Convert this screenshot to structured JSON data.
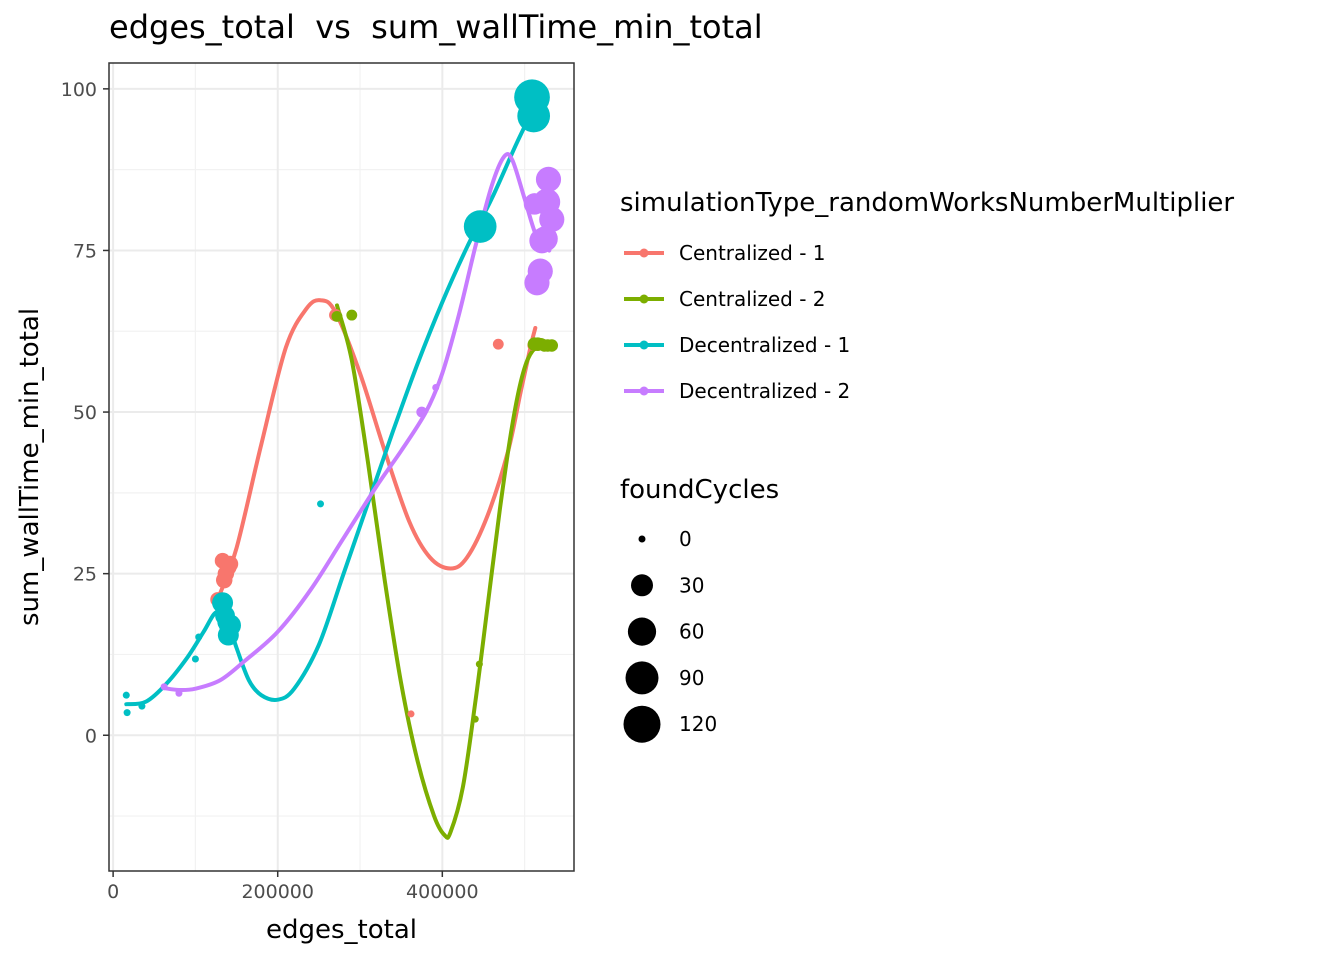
{
  "chart_data": {
    "type": "scatter",
    "title": "edges_total  vs  sum_wallTime_min_total",
    "xlabel": "edges_total",
    "ylabel": "sum_wallTime_min_total",
    "xlim": [
      -5000,
      560000
    ],
    "ylim": [
      -21,
      104
    ],
    "x_ticks": [
      0,
      200000,
      400000
    ],
    "x_tick_labels": [
      "0",
      "200000",
      "400000"
    ],
    "y_ticks": [
      0,
      25,
      50,
      75,
      100
    ],
    "y_tick_labels": [
      "0",
      "25",
      "50",
      "75",
      "100"
    ],
    "grid": true,
    "legend_position": "right",
    "color_legend_title": "simulationType_randomWorksNumberMultiplier",
    "size_legend_title": "foundCycles",
    "size_legend": [
      {
        "label": "0",
        "value": 0
      },
      {
        "label": "30",
        "value": 30
      },
      {
        "label": "60",
        "value": 60
      },
      {
        "label": "90",
        "value": 90
      },
      {
        "label": "120",
        "value": 120
      }
    ],
    "series": [
      {
        "name": "Centralized - 1",
        "color": "#F8766D",
        "points": [
          {
            "x": 127000,
            "y": 21,
            "cycles": 8
          },
          {
            "x": 133000,
            "y": 27,
            "cycles": 10
          },
          {
            "x": 135000,
            "y": 24,
            "cycles": 12
          },
          {
            "x": 137000,
            "y": 25,
            "cycles": 12
          },
          {
            "x": 140000,
            "y": 26,
            "cycles": 12
          },
          {
            "x": 142000,
            "y": 26.5,
            "cycles": 12
          },
          {
            "x": 270000,
            "y": 65,
            "cycles": 4
          },
          {
            "x": 362000,
            "y": 3.3,
            "cycles": 0
          },
          {
            "x": 468000,
            "y": 60.5,
            "cycles": 2
          },
          {
            "x": 510000,
            "y": 60.3,
            "cycles": 2
          }
        ],
        "smooth": [
          [
            127000,
            21
          ],
          [
            150000,
            29
          ],
          [
            180000,
            45
          ],
          [
            210000,
            60
          ],
          [
            235000,
            66
          ],
          [
            252000,
            67.3
          ],
          [
            270000,
            65.5
          ],
          [
            300000,
            56
          ],
          [
            330000,
            44
          ],
          [
            360000,
            33
          ],
          [
            385000,
            27.5
          ],
          [
            410000,
            25.8
          ],
          [
            430000,
            27.5
          ],
          [
            455000,
            34
          ],
          [
            480000,
            44
          ],
          [
            495000,
            53
          ],
          [
            507000,
            60
          ],
          [
            513000,
            63
          ]
        ]
      },
      {
        "name": "Centralized - 2",
        "color": "#7CAE00",
        "points": [
          {
            "x": 272000,
            "y": 64.8,
            "cycles": 2
          },
          {
            "x": 290000,
            "y": 65,
            "cycles": 2
          },
          {
            "x": 440000,
            "y": 2.5,
            "cycles": 0
          },
          {
            "x": 445000,
            "y": 11,
            "cycles": 0
          },
          {
            "x": 512000,
            "y": 60.5,
            "cycles": 6
          },
          {
            "x": 516000,
            "y": 60.5,
            "cycles": 6
          },
          {
            "x": 520000,
            "y": 60.5,
            "cycles": 4
          },
          {
            "x": 524000,
            "y": 60.3,
            "cycles": 4
          },
          {
            "x": 528000,
            "y": 60.3,
            "cycles": 4
          },
          {
            "x": 533000,
            "y": 60.3,
            "cycles": 4
          }
        ],
        "smooth": [
          [
            272000,
            66.5
          ],
          [
            290000,
            58
          ],
          [
            310000,
            42
          ],
          [
            330000,
            24
          ],
          [
            350000,
            8
          ],
          [
            370000,
            -4
          ],
          [
            390000,
            -12.5
          ],
          [
            403000,
            -15.5
          ],
          [
            410000,
            -15
          ],
          [
            425000,
            -8
          ],
          [
            440000,
            5
          ],
          [
            455000,
            20
          ],
          [
            470000,
            35
          ],
          [
            485000,
            48
          ],
          [
            498000,
            56
          ],
          [
            510000,
            59.5
          ],
          [
            525000,
            60.5
          ],
          [
            533000,
            60.3
          ]
        ]
      },
      {
        "name": "Decentralized - 1",
        "color": "#00BFC4",
        "points": [
          {
            "x": 16000,
            "y": 6.2,
            "cycles": 0
          },
          {
            "x": 17000,
            "y": 3.5,
            "cycles": 0
          },
          {
            "x": 35000,
            "y": 4.5,
            "cycles": 0
          },
          {
            "x": 100000,
            "y": 11.8,
            "cycles": 0
          },
          {
            "x": 104000,
            "y": 15.2,
            "cycles": 0
          },
          {
            "x": 133000,
            "y": 20.5,
            "cycles": 26
          },
          {
            "x": 136000,
            "y": 18.5,
            "cycles": 22
          },
          {
            "x": 138000,
            "y": 17.5,
            "cycles": 18
          },
          {
            "x": 140000,
            "y": 15.5,
            "cycles": 26
          },
          {
            "x": 142000,
            "y": 17,
            "cycles": 30
          },
          {
            "x": 252000,
            "y": 35.8,
            "cycles": 0
          },
          {
            "x": 446000,
            "y": 78.7,
            "cycles": 88
          },
          {
            "x": 509000,
            "y": 98.7,
            "cycles": 110
          },
          {
            "x": 511000,
            "y": 95.8,
            "cycles": 88
          }
        ],
        "smooth": [
          [
            16000,
            4.8
          ],
          [
            40000,
            5.2
          ],
          [
            65000,
            8
          ],
          [
            90000,
            12
          ],
          [
            110000,
            16
          ],
          [
            125000,
            19
          ],
          [
            138000,
            18
          ],
          [
            150000,
            13.5
          ],
          [
            165000,
            8.5
          ],
          [
            180000,
            6.2
          ],
          [
            200000,
            5.5
          ],
          [
            220000,
            7.2
          ],
          [
            250000,
            14
          ],
          [
            280000,
            25
          ],
          [
            310000,
            36
          ],
          [
            340000,
            47
          ],
          [
            370000,
            57.5
          ],
          [
            400000,
            67
          ],
          [
            430000,
            75.5
          ],
          [
            460000,
            83
          ],
          [
            490000,
            91.5
          ],
          [
            511000,
            97
          ]
        ]
      },
      {
        "name": "Decentralized - 2",
        "color": "#C77CFF",
        "points": [
          {
            "x": 62000,
            "y": 7.5,
            "cycles": 0
          },
          {
            "x": 80000,
            "y": 6.5,
            "cycles": 0
          },
          {
            "x": 375000,
            "y": 50,
            "cycles": 2
          },
          {
            "x": 392000,
            "y": 53.8,
            "cycles": 0
          },
          {
            "x": 512000,
            "y": 82.2,
            "cycles": 28
          },
          {
            "x": 515000,
            "y": 70,
            "cycles": 44
          },
          {
            "x": 519000,
            "y": 71.8,
            "cycles": 44
          },
          {
            "x": 521000,
            "y": 76.5,
            "cycles": 44
          },
          {
            "x": 525000,
            "y": 76.8,
            "cycles": 44
          },
          {
            "x": 527000,
            "y": 82.5,
            "cycles": 52
          },
          {
            "x": 529000,
            "y": 86,
            "cycles": 44
          },
          {
            "x": 533000,
            "y": 79.8,
            "cycles": 44
          }
        ],
        "smooth": [
          [
            62000,
            7.3
          ],
          [
            80000,
            7
          ],
          [
            100000,
            7.2
          ],
          [
            130000,
            8.5
          ],
          [
            160000,
            11.5
          ],
          [
            200000,
            16
          ],
          [
            240000,
            22.5
          ],
          [
            280000,
            30.5
          ],
          [
            320000,
            38.5
          ],
          [
            350000,
            44
          ],
          [
            380000,
            50
          ],
          [
            400000,
            56
          ],
          [
            420000,
            65
          ],
          [
            440000,
            75.5
          ],
          [
            460000,
            85
          ],
          [
            475000,
            89.5
          ],
          [
            485000,
            89
          ],
          [
            500000,
            83
          ],
          [
            515000,
            77
          ],
          [
            530000,
            75
          ]
        ]
      }
    ]
  }
}
